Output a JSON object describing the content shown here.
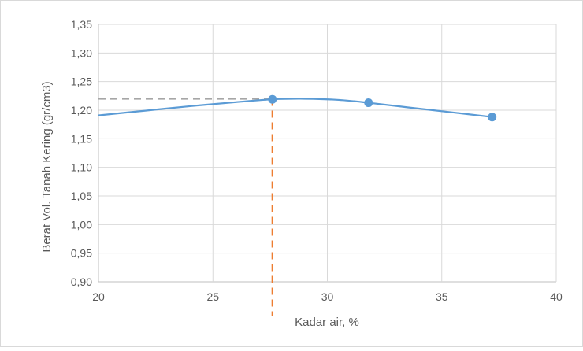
{
  "chart_data": {
    "type": "line",
    "xlabel": "Kadar air, %",
    "ylabel": "Berat Vol. Tanah Kering (gr/cm3)",
    "xlim": [
      20,
      40
    ],
    "ylim": [
      0.9,
      1.35
    ],
    "x_ticks": [
      "20",
      "25",
      "30",
      "35",
      "40"
    ],
    "y_ticks": [
      "0,90",
      "0,95",
      "1,00",
      "1,05",
      "1,10",
      "1,15",
      "1,20",
      "1,25",
      "1,30",
      "1,35"
    ],
    "grid": true,
    "legend": "none",
    "series": [
      {
        "points": [
          {
            "x": 27.6,
            "y": 1.219
          },
          {
            "x": 31.8,
            "y": 1.213
          },
          {
            "x": 37.2,
            "y": 1.188
          }
        ],
        "curve": [
          {
            "x": 20.0,
            "y": 1.191
          },
          {
            "x": 22.0,
            "y": 1.199
          },
          {
            "x": 24.0,
            "y": 1.207
          },
          {
            "x": 26.0,
            "y": 1.214
          },
          {
            "x": 27.6,
            "y": 1.219
          },
          {
            "x": 29.0,
            "y": 1.22
          },
          {
            "x": 30.5,
            "y": 1.218
          },
          {
            "x": 31.8,
            "y": 1.213
          },
          {
            "x": 33.5,
            "y": 1.205
          },
          {
            "x": 35.5,
            "y": 1.196
          },
          {
            "x": 37.2,
            "y": 1.188
          }
        ],
        "color": "#5b9bd5"
      }
    ],
    "annotations": [
      {
        "type": "hline-to-point",
        "x": 27.6,
        "y": 1.22,
        "color": "#a6a6a6",
        "style": "dashed"
      },
      {
        "type": "vline-to-point",
        "x": 27.6,
        "y": 1.22,
        "color": "#ed7d31",
        "style": "dashed"
      }
    ],
    "colors": {
      "grid": "#d9d9d9",
      "axis": "#bfbfbf",
      "text": "#595959",
      "frame": "#d9d9d9"
    }
  }
}
